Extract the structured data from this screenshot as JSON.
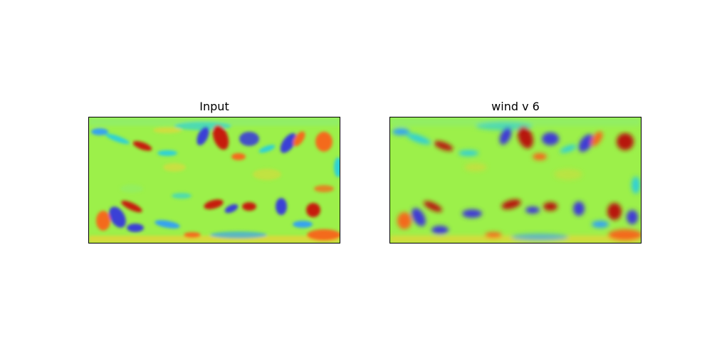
{
  "panels": [
    {
      "title": "Input",
      "colormap": "turbo",
      "base_color": "#9cf04a",
      "blob_colors": {
        "red": "#c61a0a",
        "orange": "#f46a1d",
        "yellow": "#e6d53a",
        "cyan": "#2ed1d6",
        "blue": "#3b3fd6",
        "sky": "#34a3f0"
      }
    },
    {
      "title": "wind v 6",
      "colormap": "turbo",
      "base_color": "#9cf04a",
      "blob_colors": {
        "red": "#b71608",
        "orange": "#f36b1e",
        "yellow": "#e4d238",
        "cyan": "#30d0d4",
        "blue": "#3f3bd4",
        "sky": "#33a4f2"
      }
    }
  ]
}
